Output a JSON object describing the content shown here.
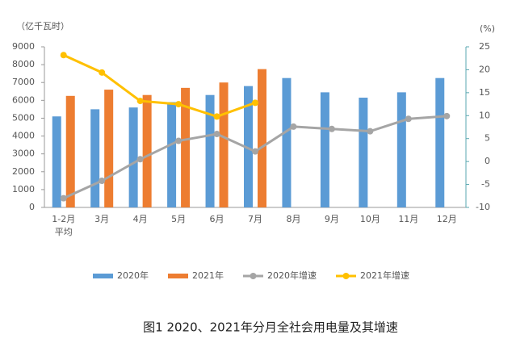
{
  "chart_data": {
    "type": "bar-line",
    "y_label": "（亿千瓦时）",
    "y2_label": "(%)",
    "caption": "图1 2020、2021年分月全社会用电量及其增速",
    "categories": [
      "1-2月\n平均",
      "3月",
      "4月",
      "5月",
      "6月",
      "7月",
      "8月",
      "9月",
      "10月",
      "11月",
      "12月"
    ],
    "series": [
      {
        "name": "2020年",
        "kind": "bar",
        "color": "#5b9bd5",
        "values": [
          5100,
          5500,
          5600,
          5900,
          6300,
          6800,
          7250,
          6450,
          6150,
          6450,
          7250
        ]
      },
      {
        "name": "2021年",
        "kind": "bar",
        "color": "#ed7d31",
        "values": [
          6250,
          6600,
          6300,
          6700,
          7000,
          7750,
          null,
          null,
          null,
          null,
          null
        ]
      },
      {
        "name": "2020年增速",
        "kind": "line",
        "axis": "y2",
        "color": "#a5a5a5",
        "values": [
          -8,
          -4.2,
          0.5,
          4.5,
          6,
          2.2,
          7.6,
          7.1,
          6.6,
          9.3,
          9.9
        ]
      },
      {
        "name": "2021年增速",
        "kind": "line",
        "axis": "y2",
        "color": "#ffc000",
        "values": [
          23.2,
          19.4,
          13.2,
          12.5,
          9.8,
          12.8,
          null,
          null,
          null,
          null,
          null
        ]
      }
    ],
    "ylim": [
      0,
      9000
    ],
    "yticks": [
      0,
      1000,
      2000,
      3000,
      4000,
      5000,
      6000,
      7000,
      8000,
      9000
    ],
    "y2lim": [
      -10,
      25
    ],
    "y2ticks": [
      -10,
      -5,
      0,
      5,
      10,
      15,
      20,
      25
    ]
  }
}
